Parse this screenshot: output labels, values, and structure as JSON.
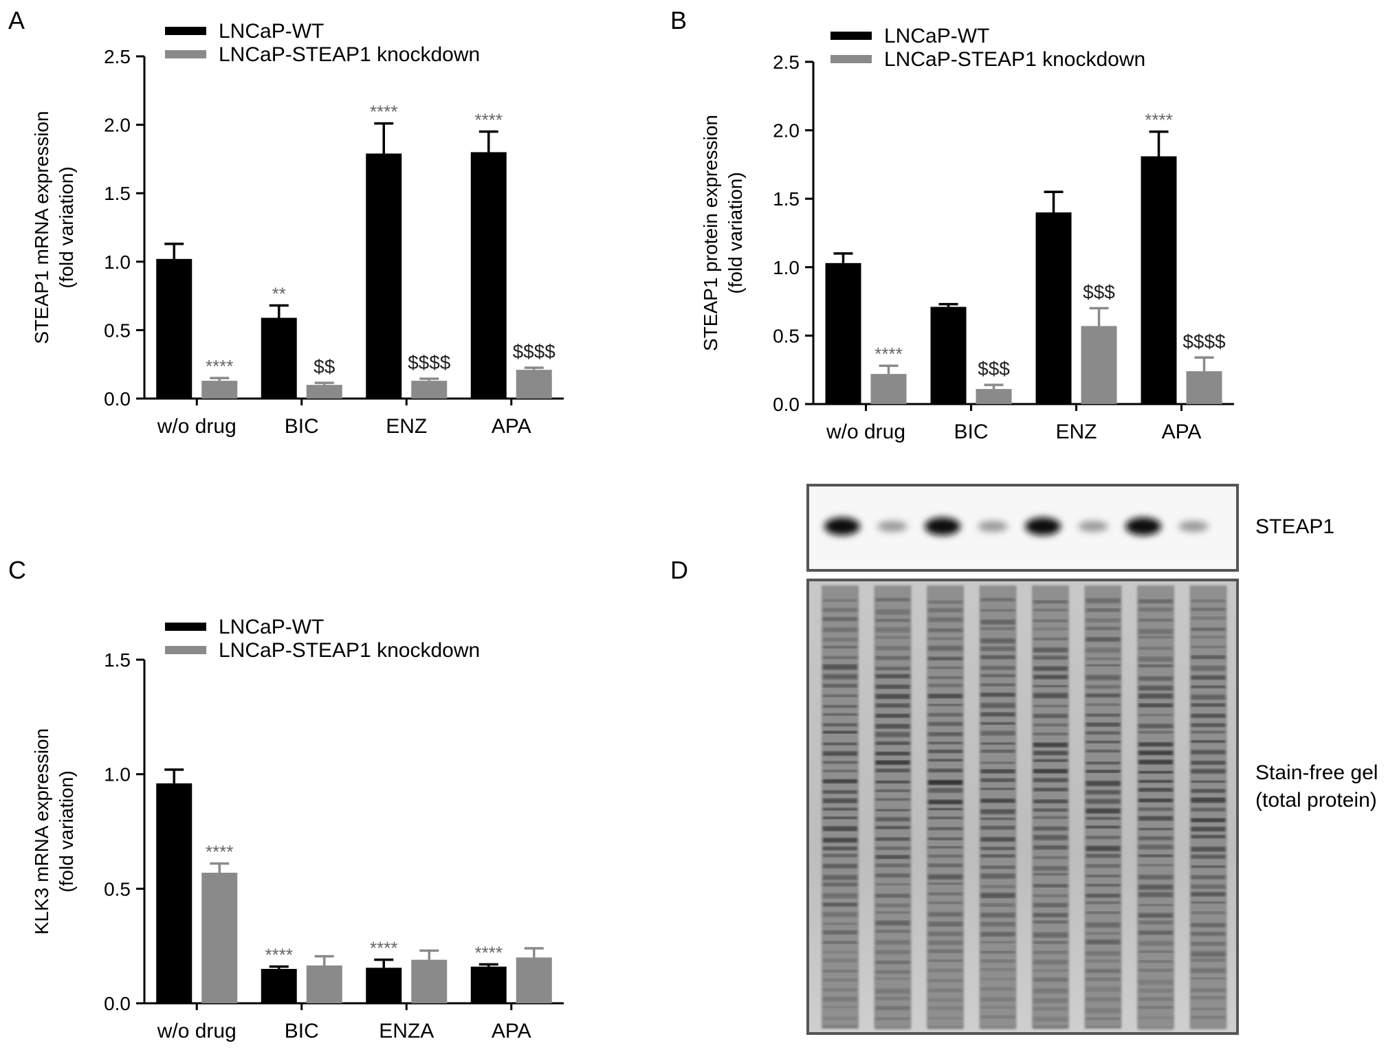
{
  "colors": {
    "wt": "#000000",
    "kd": "#8a8a8a",
    "axis": "#000000",
    "asterisk": "#666666",
    "dollar": "#222222"
  },
  "panels": {
    "A": "A",
    "B": "B",
    "C": "C",
    "D": "D"
  },
  "chart_data": [
    {
      "id": "A",
      "type": "bar",
      "categories": [
        "w/o drug",
        "BIC",
        "ENZ",
        "APA"
      ],
      "ylabel": "STEAP1 mRNA expression\n(fold variation)",
      "ylim": [
        0,
        2.5
      ],
      "yticks": [
        "0.0",
        "0.5",
        "1.0",
        "1.5",
        "2.0",
        "2.5"
      ],
      "legend": [
        "LNCaP-WT",
        "LNCaP-STEAP1 knockdown"
      ],
      "series": [
        {
          "name": "LNCaP-WT",
          "values": [
            1.02,
            0.59,
            1.79,
            1.8
          ],
          "errors": [
            0.11,
            0.09,
            0.22,
            0.15
          ],
          "annotations": [
            "",
            "**",
            "****",
            "****"
          ]
        },
        {
          "name": "LNCaP-STEAP1 knockdown",
          "values": [
            0.13,
            0.1,
            0.13,
            0.21
          ],
          "errors": [
            0.02,
            0.015,
            0.015,
            0.015
          ],
          "annotations": [
            "****",
            "$$",
            "$$$$",
            "$$$$"
          ]
        }
      ]
    },
    {
      "id": "B",
      "type": "bar",
      "categories": [
        "w/o drug",
        "BIC",
        "ENZ",
        "APA"
      ],
      "ylabel": "STEAP1 protein expression\n(fold variation)",
      "ylim": [
        0,
        2.5
      ],
      "yticks": [
        "0.0",
        "0.5",
        "1.0",
        "1.5",
        "2.0",
        "2.5"
      ],
      "legend": [
        "LNCaP-WT",
        "LNCaP-STEAP1 knockdown"
      ],
      "series": [
        {
          "name": "LNCaP-WT",
          "values": [
            1.03,
            0.71,
            1.4,
            1.81
          ],
          "errors": [
            0.07,
            0.02,
            0.15,
            0.18
          ],
          "annotations": [
            "",
            "",
            "",
            "****"
          ]
        },
        {
          "name": "LNCaP-STEAP1 knockdown",
          "values": [
            0.22,
            0.11,
            0.57,
            0.24
          ],
          "errors": [
            0.06,
            0.03,
            0.13,
            0.1
          ],
          "annotations": [
            "****",
            "$$$",
            "$$$",
            "$$$$"
          ]
        }
      ]
    },
    {
      "id": "C",
      "type": "bar",
      "categories": [
        "w/o drug",
        "BIC",
        "ENZA",
        "APA"
      ],
      "ylabel": "KLK3 mRNA expression\n(fold variation)",
      "ylim": [
        0,
        1.5
      ],
      "yticks": [
        "0.0",
        "0.5",
        "1.0",
        "1.5"
      ],
      "legend": [
        "LNCaP-WT",
        "LNCaP-STEAP1 knockdown"
      ],
      "series": [
        {
          "name": "LNCaP-WT",
          "values": [
            0.96,
            0.15,
            0.155,
            0.16
          ],
          "errors": [
            0.06,
            0.01,
            0.035,
            0.01
          ],
          "annotations": [
            "",
            "****",
            "****",
            "****"
          ]
        },
        {
          "name": "LNCaP-STEAP1 knockdown",
          "values": [
            0.57,
            0.165,
            0.19,
            0.2
          ],
          "errors": [
            0.04,
            0.04,
            0.04,
            0.04
          ],
          "annotations": [
            "****",
            "",
            "",
            ""
          ]
        }
      ]
    }
  ],
  "blot": {
    "labels": {
      "steap1": "STEAP1",
      "gel_line1": "Stain-free gel",
      "gel_line2": "(total protein)"
    },
    "lanes": 8
  }
}
